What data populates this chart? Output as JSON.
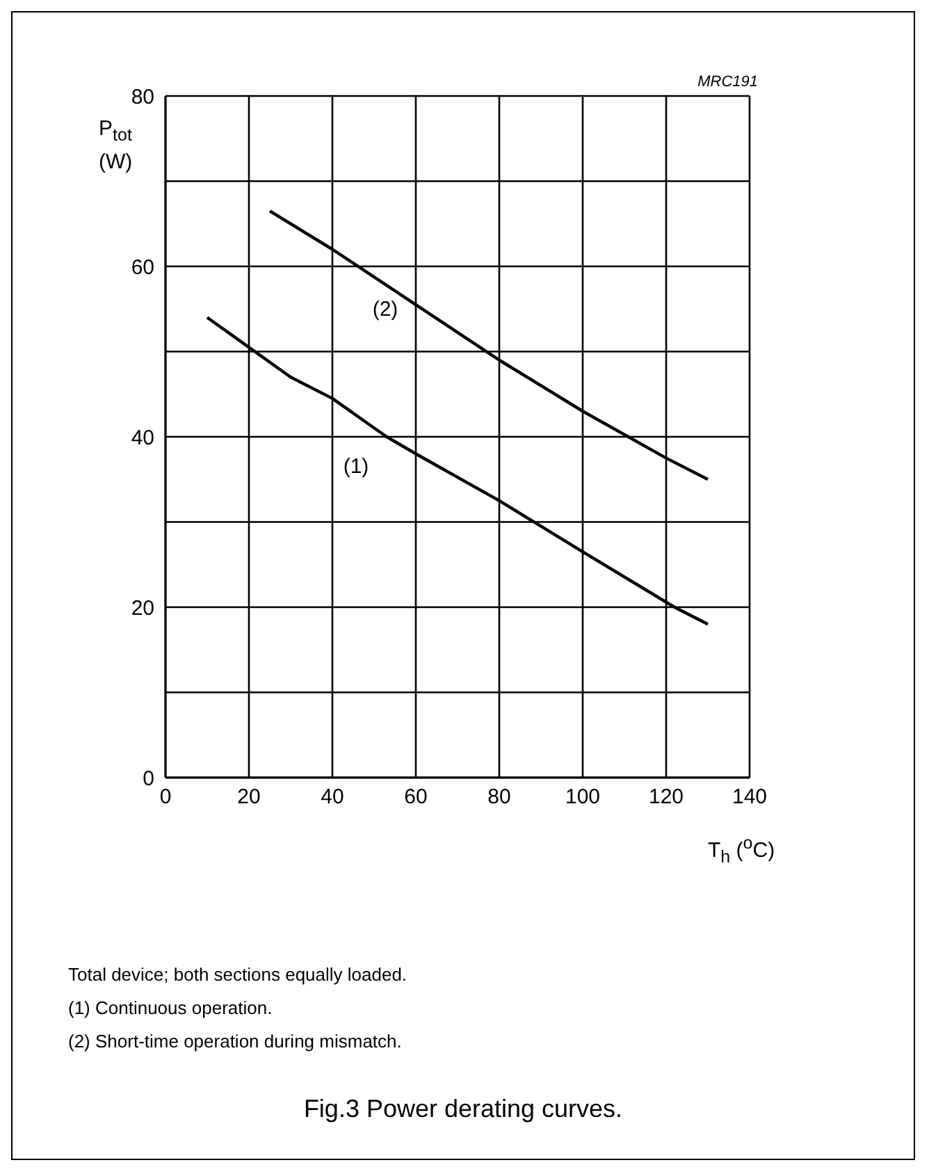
{
  "chart_data": {
    "type": "line",
    "title": "Fig.3 Power derating curves.",
    "xlabel": "T$_{h}$ ($^{o}$C)",
    "ylabel": "P$_{tot}$ (W)",
    "x": [
      10,
      20,
      30,
      40,
      53,
      60,
      80,
      100,
      122,
      130
    ],
    "series": [
      {
        "color": "#000000",
        "values": [
          54,
          50.5,
          47,
          44.5,
          40,
          38,
          32.5,
          26.5,
          20,
          18
        ]
      },
      {
        "color": "#000000",
        "x": [
          25,
          40,
          60,
          80,
          100,
          120,
          130
        ],
        "values": [
          66.5,
          62,
          55.5,
          49,
          43,
          37.5,
          35
        ]
      }
    ],
    "xlim": [
      0,
      140
    ],
    "xticks": [
      0,
      20,
      40,
      60,
      80,
      100,
      120,
      140
    ],
    "ylim": [
      0,
      80
    ],
    "yticks": [
      0,
      {
        "value": 10,
        "label": null
      },
      20,
      {
        "value": 30,
        "label": null
      },
      40,
      {
        "value": 50,
        "label": null
      },
      60,
      {
        "value": 70,
        "label": null
      },
      80
    ],
    "grid": true,
    "legend": false,
    "marker": "none",
    "line_style": "solid",
    "annotations": [
      "MRC191",
      {
        "text": "(1)",
        "x": 53,
        "y": 40
      },
      {
        "text": "(2)",
        "x": 60,
        "y": 55.5
      },
      "Total device; both sections equally loaded.",
      "(1)  Continuous operation.",
      "(2)  Short-time operation during mismatch."
    ]
  }
}
